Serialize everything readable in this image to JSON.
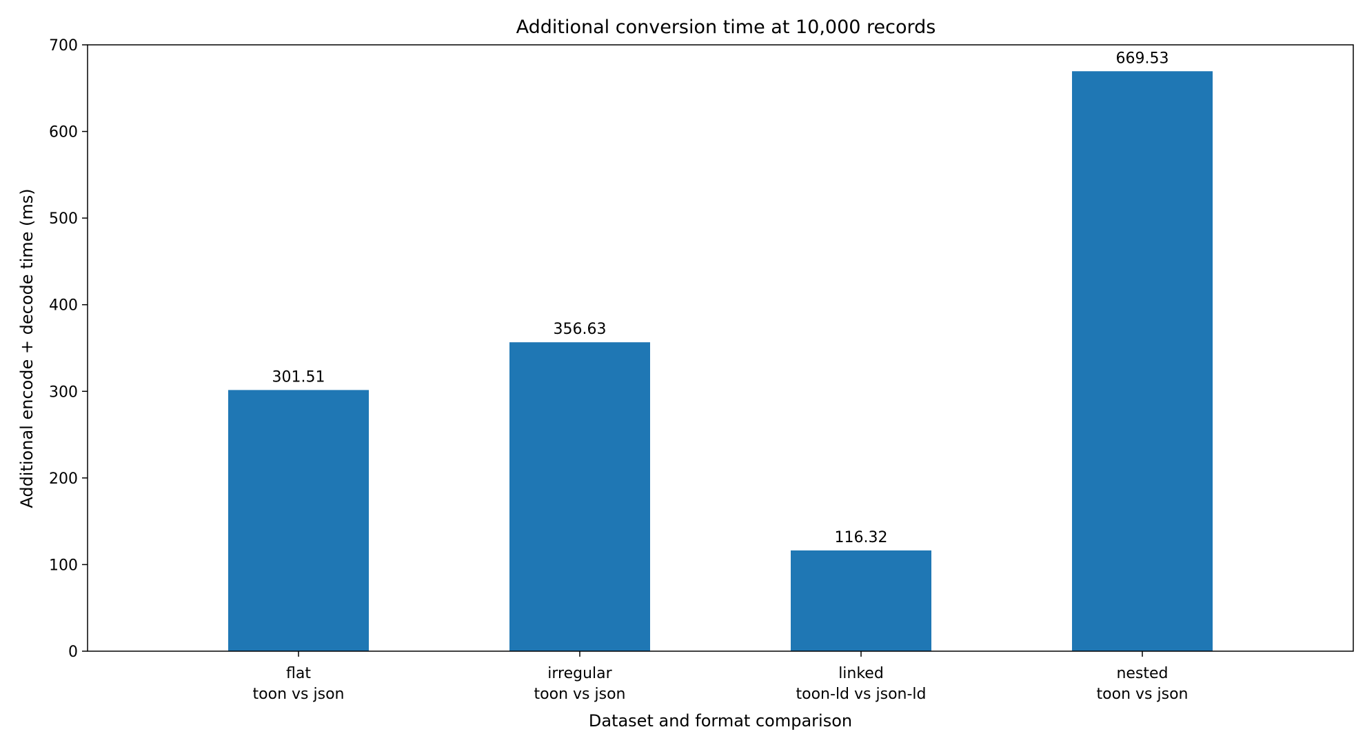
{
  "chart_data": {
    "type": "bar",
    "title": "Additional conversion time at 10,000 records",
    "xlabel": "Dataset and format comparison",
    "ylabel": "Additional encode + decode time (ms)",
    "categories": [
      [
        "flat",
        "toon vs json"
      ],
      [
        "irregular",
        "toon vs json"
      ],
      [
        "linked",
        "toon-ld vs json-ld"
      ],
      [
        "nested",
        "toon vs json"
      ]
    ],
    "values": [
      301.51,
      356.63,
      116.32,
      669.53
    ],
    "data_labels": [
      "301.51",
      "356.63",
      "116.32",
      "669.53"
    ],
    "ylim": [
      0,
      700
    ],
    "yticks": [
      0,
      100,
      200,
      300,
      400,
      500,
      600,
      700
    ],
    "grid": false,
    "legend": "none",
    "colors": {
      "bar": "#1f77b4",
      "axis": "#000000",
      "text": "#000000",
      "background": "#ffffff"
    }
  }
}
